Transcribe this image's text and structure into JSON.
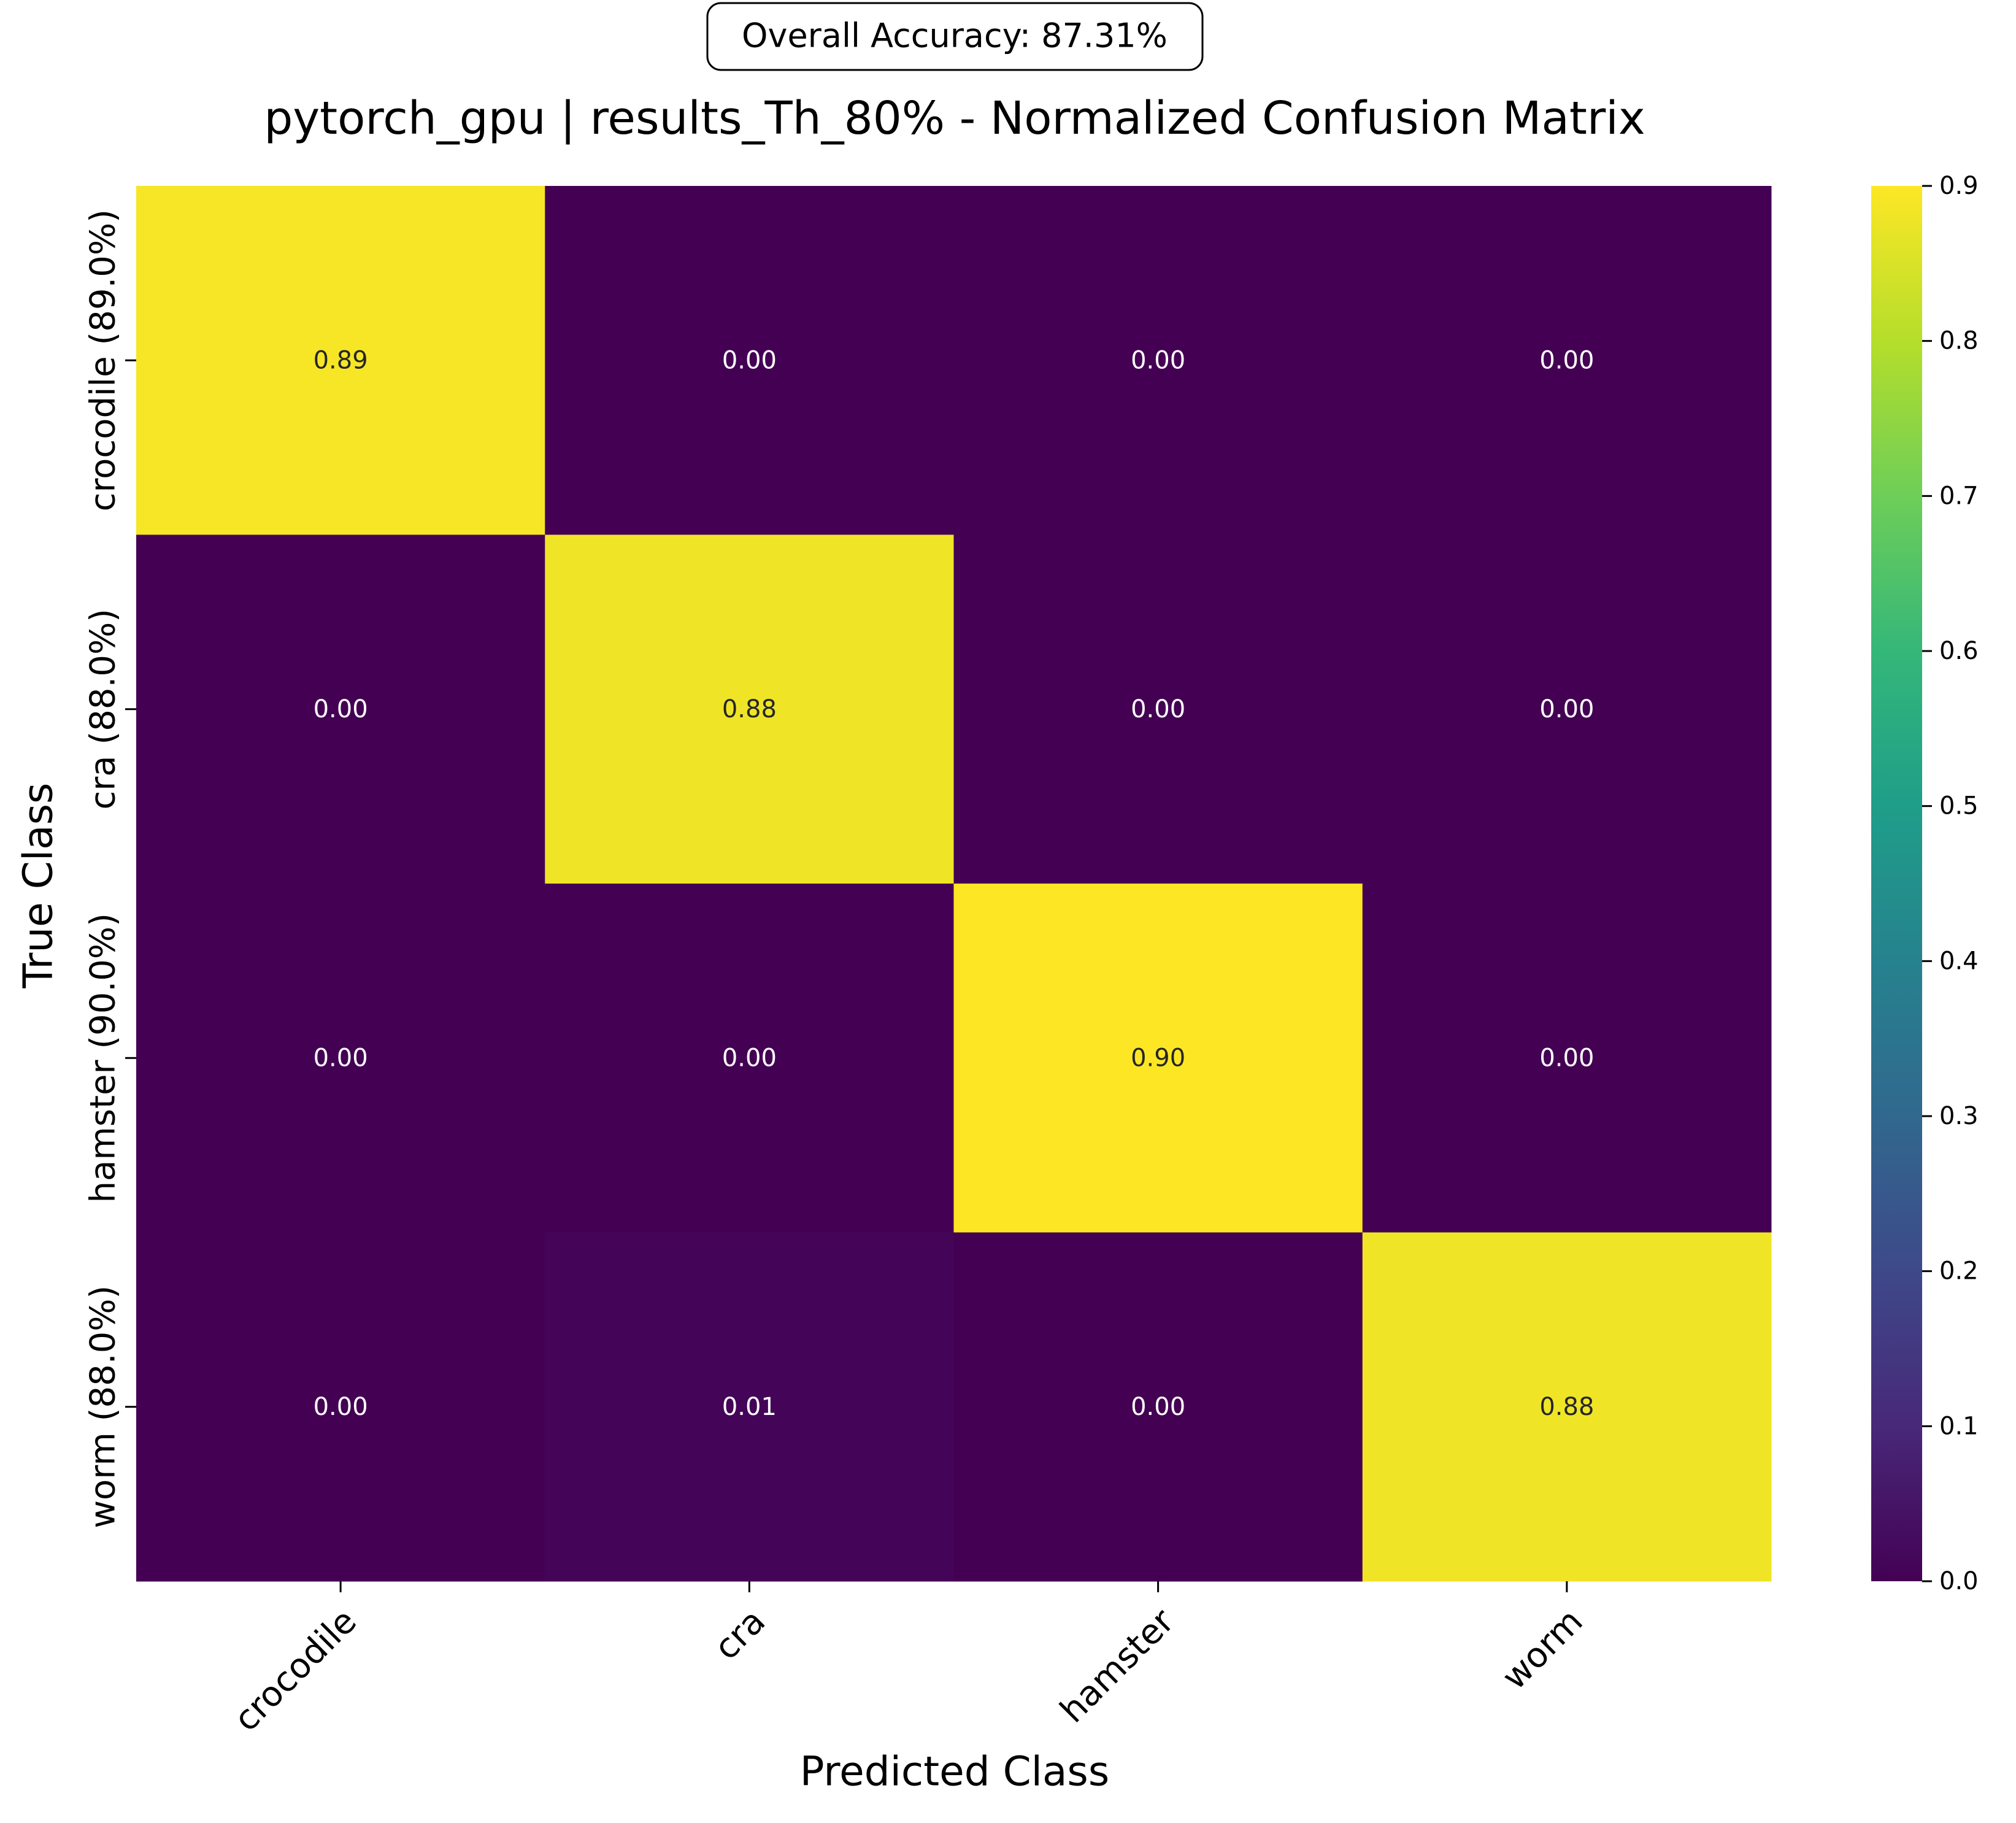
{
  "chart_data": {
    "type": "heatmap",
    "title": "pytorch_gpu | results_Th_80% - Normalized Confusion Matrix",
    "annotation": "Overall Accuracy: 87.31%",
    "xlabel": "Predicted Class",
    "ylabel": "True Class",
    "x_categories": [
      "crocodile",
      "cra",
      "hamster",
      "worm"
    ],
    "y_categories": [
      "crocodile (89.0%)",
      "cra (88.0%)",
      "hamster (90.0%)",
      "worm (88.0%)"
    ],
    "values": [
      [
        0.89,
        0.0,
        0.0,
        0.0
      ],
      [
        0.0,
        0.88,
        0.0,
        0.0
      ],
      [
        0.0,
        0.0,
        0.9,
        0.0
      ],
      [
        0.0,
        0.01,
        0.0,
        0.88
      ]
    ],
    "cell_labels": [
      [
        "0.89",
        "0.00",
        "0.00",
        "0.00"
      ],
      [
        "0.00",
        "0.88",
        "0.00",
        "0.00"
      ],
      [
        "0.00",
        "0.00",
        "0.90",
        "0.00"
      ],
      [
        "0.00",
        "0.01",
        "0.00",
        "0.88"
      ]
    ],
    "colormap": "viridis",
    "color_range": [
      0.0,
      0.9
    ],
    "colorbar_ticks": [
      "0.0",
      "0.1",
      "0.2",
      "0.3",
      "0.4",
      "0.5",
      "0.6",
      "0.7",
      "0.8",
      "0.9"
    ],
    "colorbar_placement": "right",
    "grid": false
  }
}
